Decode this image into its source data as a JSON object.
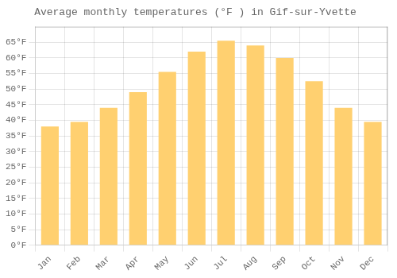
{
  "chart_data": {
    "type": "bar",
    "title": "Average monthly temperatures (°F ) in Gif-sur-Yvette",
    "categories": [
      "Jan",
      "Feb",
      "Mar",
      "Apr",
      "May",
      "Jun",
      "Jul",
      "Aug",
      "Sep",
      "Oct",
      "Nov",
      "Dec"
    ],
    "values": [
      38.0,
      39.5,
      44.0,
      49.0,
      55.5,
      62.0,
      65.5,
      64.0,
      60.0,
      52.5,
      44.0,
      39.5
    ],
    "color": "#FFD070",
    "ylim": [
      0,
      70
    ],
    "yticks": [
      {
        "value": 0,
        "label": "0°F"
      },
      {
        "value": 5,
        "label": "5°F"
      },
      {
        "value": 10,
        "label": "10°F"
      },
      {
        "value": 15,
        "label": "15°F"
      },
      {
        "value": 20,
        "label": "20°F"
      },
      {
        "value": 25,
        "label": "25°F"
      },
      {
        "value": 30,
        "label": "30°F"
      },
      {
        "value": 35,
        "label": "35°F"
      },
      {
        "value": 40,
        "label": "40°F"
      },
      {
        "value": 45,
        "label": "45°F"
      },
      {
        "value": 50,
        "label": "50°F"
      },
      {
        "value": 55,
        "label": "55°F"
      },
      {
        "value": 60,
        "label": "60°F"
      },
      {
        "value": 65,
        "label": "65°F"
      }
    ],
    "grid": true
  }
}
